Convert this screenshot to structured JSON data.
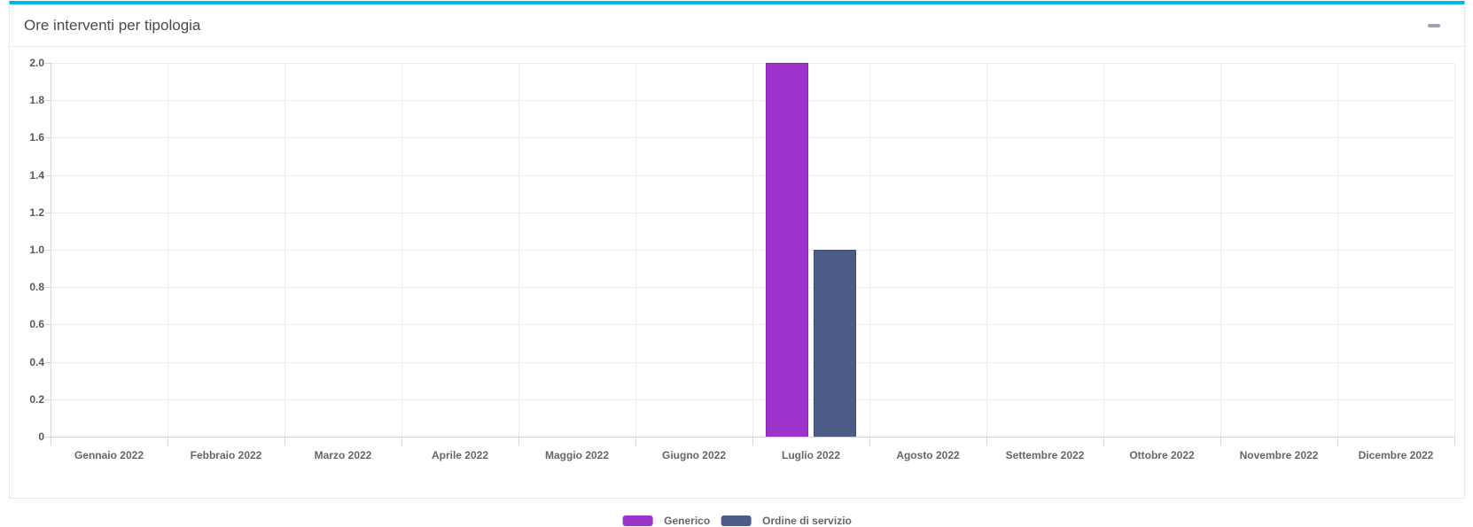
{
  "panel": {
    "title": "Ore interventi per tipologia",
    "accent_color": "#00b9e2",
    "collapse_tooltip": "collapse"
  },
  "chart_data": {
    "type": "bar",
    "title": "Ore interventi per tipologia",
    "categories": [
      "Gennaio 2022",
      "Febbraio 2022",
      "Marzo 2022",
      "Aprile 2022",
      "Maggio 2022",
      "Giugno 2022",
      "Luglio 2022",
      "Agosto 2022",
      "Settembre 2022",
      "Ottobre 2022",
      "Novembre 2022",
      "Dicembre 2022"
    ],
    "series": [
      {
        "name": "Generico",
        "color": "#9c33cb",
        "border_color": "#8a28b8",
        "values": [
          0,
          0,
          0,
          0,
          0,
          0,
          2,
          0,
          0,
          0,
          0,
          0
        ]
      },
      {
        "name": "Ordine di servizio",
        "color": "#4c5c86",
        "border_color": "#3f4f79",
        "values": [
          0,
          0,
          0,
          0,
          0,
          0,
          1,
          0,
          0,
          0,
          0,
          0
        ]
      }
    ],
    "ylim": [
      0,
      2
    ],
    "ytick_step": 0.2,
    "yticks_top_to_bottom": [
      "2.0",
      "1.8",
      "1.6",
      "1.4",
      "1.2",
      "1.0",
      "0.8",
      "0.6",
      "0.4",
      "0.2",
      "0"
    ],
    "xlabel": "",
    "ylabel": "",
    "grid": true,
    "legend_position": "bottom",
    "grid_color": "#ededed",
    "axis_color": "#d4d4d4",
    "y_label_color": "#595959",
    "x_label_color": "#666666"
  }
}
